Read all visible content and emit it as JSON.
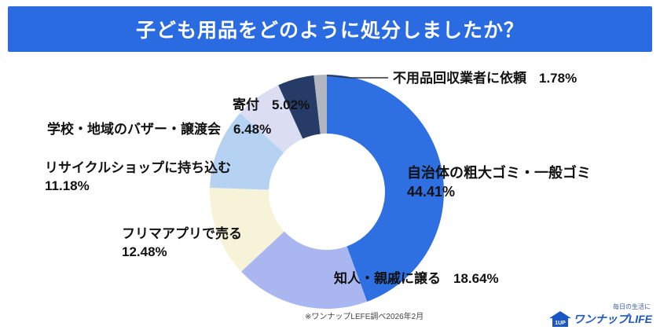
{
  "header": {
    "title": "子ども用品をどのように処分しましたか？",
    "bg": "#2b6be2"
  },
  "chart_data": {
    "type": "pie",
    "donut": true,
    "title": "子ども用品をどのように処分しましたか？",
    "start_angle_deg": 0,
    "direction": "clockwise",
    "legend_position": "around",
    "categories": [
      "自治体の粗大ゴミ・一般ゴミ",
      "知人・親戚に譲る",
      "フリマアプリで売る",
      "リサイクルショップに持ち込む",
      "学校・地域のバザー・譲渡会",
      "寄付",
      "不用品回収業者に依頼"
    ],
    "values": [
      44.41,
      18.64,
      12.48,
      11.18,
      6.48,
      5.02,
      1.78
    ],
    "colors": [
      "#2e6fe2",
      "#a9b6ef",
      "#f6f3d8",
      "#b5d2f3",
      "#dbdef3",
      "#263b66",
      "#b2b6c0"
    ]
  },
  "labels": {
    "jichitai": {
      "name": "自治体の粗大ゴミ・一般ゴミ",
      "value": "44.41%"
    },
    "chijin": {
      "name": "知人・親戚に譲る",
      "value": "18.64%"
    },
    "furima": {
      "name": "フリマアプリで売る",
      "value": "12.48%"
    },
    "recycle": {
      "name": "リサイクルショップに持ち込む",
      "value": "11.18%"
    },
    "bazaar": {
      "name": "学校・地域のバザー・譲渡会",
      "value": "6.48%"
    },
    "kifu": {
      "name": "寄付",
      "value": "5.02%"
    },
    "fuyohin": {
      "name": "不用品回収業者に依頼",
      "value": "1.78%"
    }
  },
  "footer": {
    "note": "※ワンナップLEFE調べ2026年2月",
    "logo_top": "毎日の生活に",
    "logo_name": "ワンナップLIFE"
  }
}
